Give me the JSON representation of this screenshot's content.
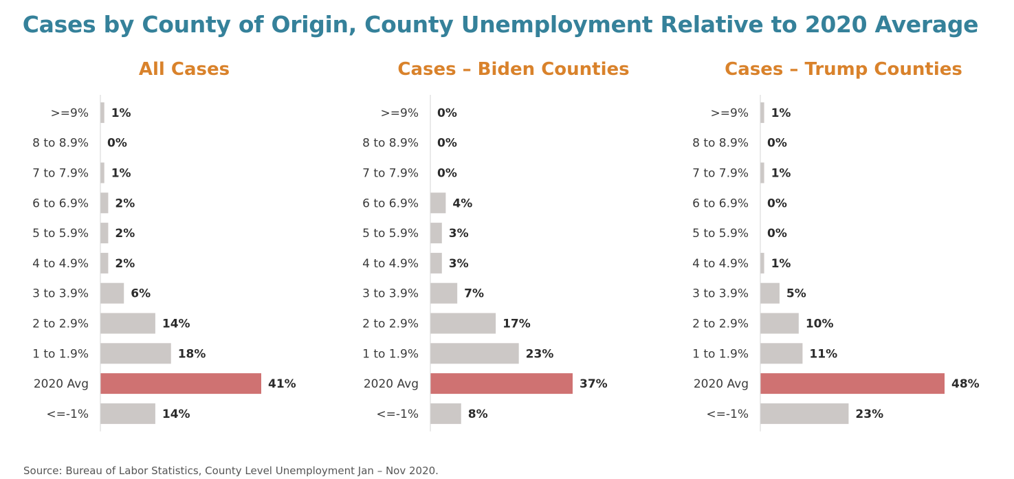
{
  "title": "Cases by County of Origin, County Unemployment Relative to 2020 Average",
  "source": "Source: Bureau of Labor Statistics, County Level Unemployment Jan – Nov 2020.",
  "colors": {
    "title": "#35819a",
    "subtitle": "#d9822b",
    "bar": "#ccc8c6",
    "highlight": "#cf7272",
    "axis": "#d6d6d6"
  },
  "chart_data": [
    {
      "type": "bar",
      "orientation": "horizontal",
      "title": "All Cases",
      "categories": [
        ">=9%",
        "8 to 8.9%",
        "7 to 7.9%",
        "6 to 6.9%",
        "5 to 5.9%",
        "4 to 4.9%",
        "3 to 3.9%",
        "2 to 2.9%",
        "1 to 1.9%",
        "2020 Avg",
        "<=-1%"
      ],
      "values": [
        1,
        0,
        1,
        2,
        2,
        2,
        6,
        14,
        18,
        41,
        14
      ],
      "value_labels": [
        "1%",
        "0%",
        "1%",
        "2%",
        "2%",
        "2%",
        "6%",
        "14%",
        "18%",
        "41%",
        "14%"
      ],
      "highlight_category": "2020 Avg",
      "xlim": [
        0,
        41
      ]
    },
    {
      "type": "bar",
      "orientation": "horizontal",
      "title": "Cases – Biden Counties",
      "categories": [
        ">=9%",
        "8 to 8.9%",
        "7 to 7.9%",
        "6 to 6.9%",
        "5 to 5.9%",
        "4 to 4.9%",
        "3 to 3.9%",
        "2 to 2.9%",
        "1 to 1.9%",
        "2020 Avg",
        "<=-1%"
      ],
      "values": [
        0,
        0,
        0,
        4,
        3,
        3,
        7,
        17,
        23,
        37,
        8
      ],
      "value_labels": [
        "0%",
        "0%",
        "0%",
        "4%",
        "3%",
        "3%",
        "7%",
        "17%",
        "23%",
        "37%",
        "8%"
      ],
      "highlight_category": "2020 Avg",
      "xlim": [
        0,
        37
      ]
    },
    {
      "type": "bar",
      "orientation": "horizontal",
      "title": "Cases – Trump Counties",
      "categories": [
        ">=9%",
        "8 to 8.9%",
        "7 to 7.9%",
        "6 to 6.9%",
        "5 to 5.9%",
        "4 to 4.9%",
        "3 to 3.9%",
        "2 to 2.9%",
        "1 to 1.9%",
        "2020 Avg",
        "<=-1%"
      ],
      "values": [
        1,
        0,
        1,
        0,
        0,
        1,
        5,
        10,
        11,
        48,
        23
      ],
      "value_labels": [
        "1%",
        "0%",
        "1%",
        "0%",
        "0%",
        "1%",
        "5%",
        "10%",
        "11%",
        "48%",
        "23%"
      ],
      "highlight_category": "2020 Avg",
      "xlim": [
        0,
        48
      ]
    }
  ]
}
